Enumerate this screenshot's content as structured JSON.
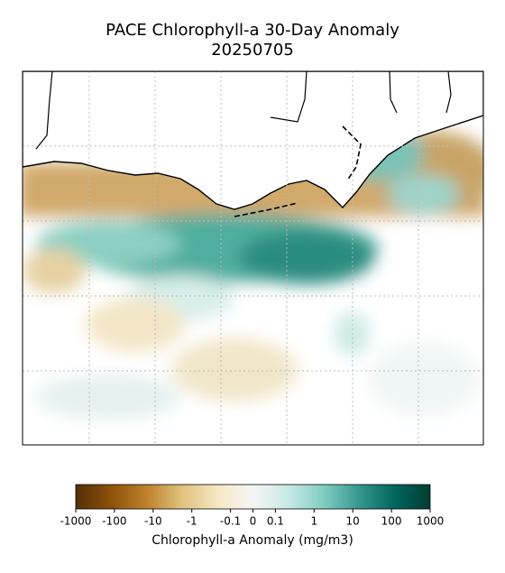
{
  "map": {
    "title": "PACE Chlorophyll-a 30-Day Anomaly",
    "date": "20250705"
  },
  "colorbar": {
    "label": "Chlorophyll-a Anomaly (mg/m3)",
    "lim": [
      -1000,
      1000
    ],
    "linthresh": 0.1,
    "ticks": [
      -1000,
      -100,
      -10,
      -1,
      -0.1,
      0,
      0.1,
      1,
      10,
      100,
      1000
    ],
    "colors": [
      "#543005",
      "#8c510a",
      "#bf812d",
      "#dfc27d",
      "#f6e8c3",
      "#f5f5f5",
      "#c7eae5",
      "#80cdc1",
      "#35978f",
      "#01665e",
      "#003c30"
    ]
  }
}
